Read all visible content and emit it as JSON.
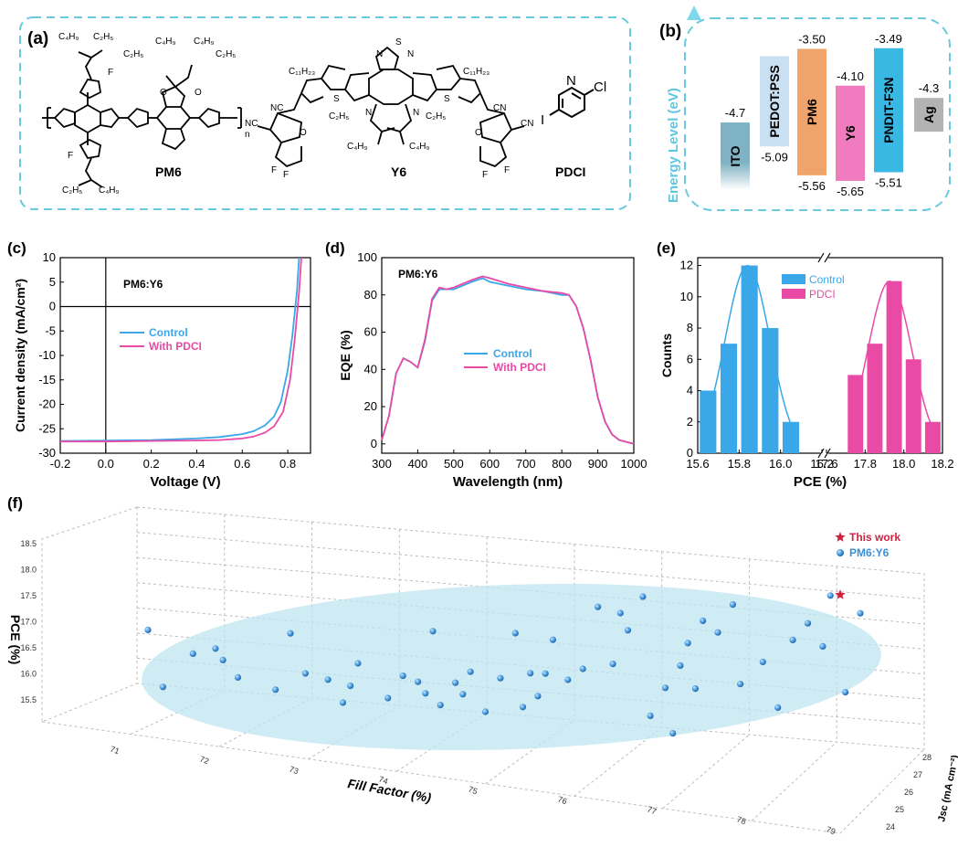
{
  "panels": {
    "a": {
      "label": "(a)",
      "molecules": [
        {
          "name": "PM6"
        },
        {
          "name": "Y6"
        },
        {
          "name": "PDCI"
        }
      ],
      "atoms": {
        "c4h9": "C₄H₉",
        "c2h5": "C₂H₅",
        "c11h23": "C₁₁H₂₃",
        "F": "F",
        "S": "S",
        "O": "O",
        "N": "N",
        "NC": "NC",
        "CN": "CN",
        "Cl": "Cl",
        "I": "I",
        "n": "n"
      }
    },
    "b": {
      "label": "(b)",
      "axis_label": "Energy Level (eV)",
      "bars": [
        {
          "name": "ITO",
          "top": "-4.7",
          "bottom": "",
          "color": "#7fb2c4"
        },
        {
          "name": "PEDOT:PSS",
          "top": "",
          "bottom": "-5.09",
          "color": "#c9dff2"
        },
        {
          "name": "PM6",
          "top": "-3.50",
          "bottom": "-5.56",
          "color": "#f0a46b"
        },
        {
          "name": "Y6",
          "top": "-4.10",
          "bottom": "-5.65",
          "color": "#f07bbf"
        },
        {
          "name": "PNDIT-F3N",
          "top": "-3.49",
          "bottom": "-5.51",
          "color": "#39b8e3"
        },
        {
          "name": "Ag",
          "top": "-4.3",
          "bottom": "",
          "color": "#b3b3b3"
        }
      ]
    },
    "f": {
      "label": "(f)",
      "legend": [
        "This work",
        "PM6:Y6"
      ]
    }
  },
  "chart_data": [
    {
      "panel": "(c)",
      "type": "line",
      "title": "PM6:Y6",
      "xlabel": "Voltage (V)",
      "ylabel": "Current density (mA/cm²)",
      "xlim": [
        -0.2,
        0.9
      ],
      "ylim": [
        -30,
        10
      ],
      "xticks": [
        "-0.2",
        "0.0",
        "0.2",
        "0.4",
        "0.6",
        "0.8"
      ],
      "yticks": [
        "10",
        "5",
        "0",
        "-5",
        "-10",
        "-15",
        "-20",
        "-25",
        "-30"
      ],
      "series": [
        {
          "name": "Control",
          "color": "#3aa7e8",
          "x": [
            -0.2,
            0.0,
            0.2,
            0.4,
            0.5,
            0.6,
            0.65,
            0.7,
            0.74,
            0.77,
            0.8,
            0.82,
            0.84,
            0.85
          ],
          "y": [
            -27.5,
            -27.4,
            -27.3,
            -27.0,
            -26.7,
            -26.1,
            -25.5,
            -24.3,
            -22.5,
            -19.5,
            -13.0,
            -6.0,
            3.0,
            10.0
          ]
        },
        {
          "name": "With PDCI",
          "color": "#e84aa6",
          "x": [
            -0.2,
            0.0,
            0.2,
            0.4,
            0.5,
            0.6,
            0.65,
            0.7,
            0.74,
            0.78,
            0.81,
            0.83,
            0.85,
            0.86
          ],
          "y": [
            -27.6,
            -27.6,
            -27.5,
            -27.4,
            -27.3,
            -27.0,
            -26.6,
            -25.8,
            -24.5,
            -21.5,
            -15.0,
            -7.0,
            3.0,
            10.0
          ]
        }
      ]
    },
    {
      "panel": "(d)",
      "type": "line",
      "title": "PM6:Y6",
      "xlabel": "Wavelength (nm)",
      "ylabel": "EQE (%)",
      "xlim": [
        300,
        1000
      ],
      "ylim": [
        -5,
        100
      ],
      "xticks": [
        "300",
        "400",
        "500",
        "600",
        "700",
        "800",
        "900",
        "1000"
      ],
      "yticks": [
        "100",
        "80",
        "60",
        "40",
        "20",
        "0"
      ],
      "series": [
        {
          "name": "Control",
          "color": "#3aa7e8",
          "x": [
            300,
            320,
            340,
            360,
            380,
            400,
            420,
            440,
            460,
            480,
            500,
            550,
            580,
            600,
            650,
            700,
            750,
            800,
            820,
            840,
            860,
            880,
            900,
            920,
            940,
            960,
            980,
            1000
          ],
          "y": [
            2,
            15,
            38,
            46,
            44,
            41,
            55,
            77,
            83,
            83,
            83,
            87,
            89,
            87,
            85,
            83,
            82,
            80,
            80,
            74,
            62,
            45,
            25,
            12,
            5,
            2,
            1,
            0
          ]
        },
        {
          "name": "With PDCI",
          "color": "#e84aa6",
          "x": [
            300,
            320,
            340,
            360,
            380,
            400,
            420,
            440,
            460,
            480,
            500,
            550,
            580,
            600,
            650,
            700,
            750,
            800,
            820,
            840,
            860,
            880,
            900,
            920,
            940,
            960,
            980,
            1000
          ],
          "y": [
            2,
            15,
            38,
            46,
            44,
            41,
            56,
            78,
            84,
            83,
            84,
            88,
            90,
            89,
            86,
            84,
            82,
            81,
            80,
            74,
            62,
            45,
            25,
            12,
            5,
            2,
            1,
            0
          ]
        }
      ]
    },
    {
      "panel": "(e)",
      "type": "bar",
      "xlabel": "PCE (%)",
      "ylabel": "Counts",
      "xlim": [
        15.6,
        18.2
      ],
      "ylim": [
        0,
        12.5
      ],
      "xticks": [
        "15.6",
        "15.8",
        "16.0",
        "16.2",
        "17.6",
        "17.8",
        "18.0",
        "18.2"
      ],
      "yticks": [
        "12",
        "10",
        "8",
        "6",
        "4",
        "2",
        "0"
      ],
      "series": [
        {
          "name": "Control",
          "color": "#3aa7e8",
          "x": [
            15.65,
            15.75,
            15.85,
            15.95,
            16.05
          ],
          "values": [
            4,
            7,
            12,
            8,
            2
          ]
        },
        {
          "name": "PDCI",
          "color": "#e84aa6",
          "x": [
            17.75,
            17.85,
            17.95,
            18.05,
            18.15
          ],
          "values": [
            5,
            7,
            11,
            6,
            2
          ]
        }
      ]
    },
    {
      "panel": "(f)",
      "type": "scatter",
      "xlabel": "Fill Factor (%)",
      "ylabel": "PCE (%)",
      "zlabel": "Jsc (mA cm⁻²)",
      "xticks": [
        "71",
        "72",
        "73",
        "74",
        "75",
        "76",
        "77",
        "78",
        "79"
      ],
      "yticks": [
        "18.5",
        "18.0",
        "17.5",
        "17.0",
        "16.5",
        "16.0",
        "15.5"
      ],
      "zticks": [
        "28",
        "27",
        "26",
        "25",
        "24"
      ],
      "series": [
        {
          "name": "This work",
          "color": "#d0213f",
          "points": [
            {
              "ff": 79.6,
              "pce": 17.95
            }
          ]
        },
        {
          "name": "PM6:Y6",
          "color": "#3a8fd8",
          "points": [
            {
              "ff": 70.4,
              "pce": 16.8
            },
            {
              "ff": 70.6,
              "pce": 15.8
            },
            {
              "ff": 71.0,
              "pce": 16.4
            },
            {
              "ff": 71.3,
              "pce": 16.5
            },
            {
              "ff": 71.4,
              "pce": 16.3
            },
            {
              "ff": 71.6,
              "pce": 16.0
            },
            {
              "ff": 72.1,
              "pce": 15.8
            },
            {
              "ff": 72.3,
              "pce": 16.8
            },
            {
              "ff": 72.5,
              "pce": 16.1
            },
            {
              "ff": 72.8,
              "pce": 16.0
            },
            {
              "ff": 73.0,
              "pce": 15.6
            },
            {
              "ff": 73.1,
              "pce": 15.9
            },
            {
              "ff": 73.2,
              "pce": 16.3
            },
            {
              "ff": 73.6,
              "pce": 15.7
            },
            {
              "ff": 73.8,
              "pce": 16.1
            },
            {
              "ff": 74.0,
              "pce": 16.0
            },
            {
              "ff": 74.1,
              "pce": 15.8
            },
            {
              "ff": 74.2,
              "pce": 16.9
            },
            {
              "ff": 74.3,
              "pce": 15.6
            },
            {
              "ff": 74.5,
              "pce": 16.0
            },
            {
              "ff": 74.6,
              "pce": 15.8
            },
            {
              "ff": 74.7,
              "pce": 16.2
            },
            {
              "ff": 74.9,
              "pce": 15.5
            },
            {
              "ff": 75.1,
              "pce": 16.1
            },
            {
              "ff": 75.3,
              "pce": 16.9
            },
            {
              "ff": 75.4,
              "pce": 15.6
            },
            {
              "ff": 75.5,
              "pce": 16.2
            },
            {
              "ff": 75.6,
              "pce": 15.8
            },
            {
              "ff": 75.7,
              "pce": 16.2
            },
            {
              "ff": 75.8,
              "pce": 16.8
            },
            {
              "ff": 76.0,
              "pce": 16.1
            },
            {
              "ff": 76.2,
              "pce": 16.3
            },
            {
              "ff": 76.4,
              "pce": 17.4
            },
            {
              "ff": 76.6,
              "pce": 16.4
            },
            {
              "ff": 76.7,
              "pce": 17.3
            },
            {
              "ff": 76.8,
              "pce": 17.0
            },
            {
              "ff": 77.0,
              "pce": 17.6
            },
            {
              "ff": 77.1,
              "pce": 15.5
            },
            {
              "ff": 77.3,
              "pce": 16.0
            },
            {
              "ff": 77.4,
              "pce": 15.2
            },
            {
              "ff": 77.5,
              "pce": 16.4
            },
            {
              "ff": 77.6,
              "pce": 16.8
            },
            {
              "ff": 77.7,
              "pce": 16.0
            },
            {
              "ff": 77.8,
              "pce": 17.2
            },
            {
              "ff": 78.0,
              "pce": 17.0
            },
            {
              "ff": 78.2,
              "pce": 17.5
            },
            {
              "ff": 78.3,
              "pce": 16.1
            },
            {
              "ff": 78.6,
              "pce": 16.5
            },
            {
              "ff": 78.8,
              "pce": 15.7
            },
            {
              "ff": 79.0,
              "pce": 16.9
            },
            {
              "ff": 79.2,
              "pce": 17.2
            },
            {
              "ff": 79.4,
              "pce": 16.8
            },
            {
              "ff": 79.5,
              "pce": 17.7
            },
            {
              "ff": 79.7,
              "pce": 16.0
            },
            {
              "ff": 79.9,
              "pce": 17.4
            }
          ]
        }
      ]
    }
  ]
}
